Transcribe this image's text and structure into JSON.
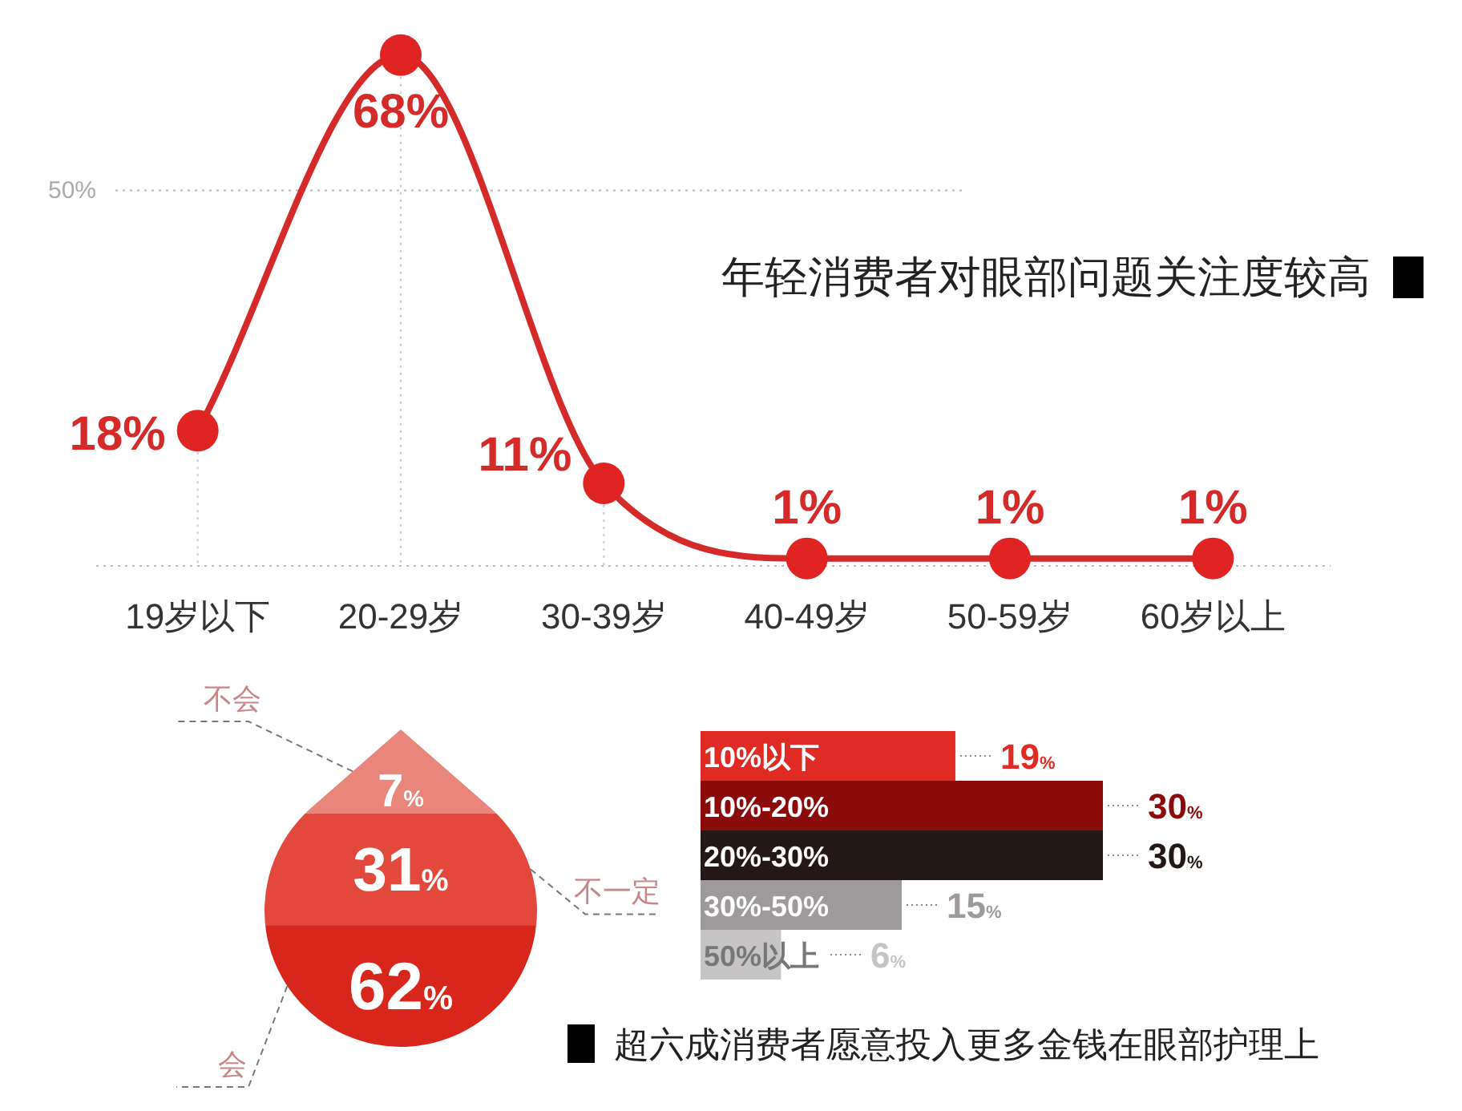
{
  "chart_data": [
    {
      "type": "line",
      "title": "年轻消费者对眼部问题关注度较高",
      "categories": [
        "19岁以下",
        "20-29岁",
        "30-39岁",
        "40-49岁",
        "50-59岁",
        "60岁以上"
      ],
      "values": [
        18,
        68,
        11,
        1,
        1,
        1
      ],
      "value_labels": [
        "18%",
        "68%",
        "11%",
        "1%",
        "1%",
        "1%"
      ],
      "color": "#d42a2a",
      "ref_lines": [
        {
          "axis": "y",
          "value": 50,
          "label": "50%"
        }
      ],
      "grid": "x",
      "marker": "circle",
      "line_style": "solid"
    },
    {
      "type": "other",
      "categories": [
        "不会",
        "不一定",
        "会"
      ],
      "values": [
        7,
        31,
        62
      ],
      "value_labels": [
        "7%",
        "31%",
        "62%"
      ],
      "colors": [
        "#e9867b",
        "#e2483b",
        "#d9261c"
      ]
    },
    {
      "type": "bar",
      "orientation": "horizontal",
      "title": "超六成消费者愿意投入更多金钱在眼部护理上",
      "categories": [
        "10%以下",
        "10%-20%",
        "20%-30%",
        "30%-50%",
        "50%以上"
      ],
      "values": [
        19,
        30,
        30,
        15,
        6
      ],
      "value_labels": [
        "19%",
        "30%",
        "30%",
        "15%",
        "6%"
      ],
      "colors": [
        "#e02a24",
        "#8b0a0a",
        "#231815",
        "#9e9a9b",
        "#c6c4c4"
      ]
    }
  ]
}
